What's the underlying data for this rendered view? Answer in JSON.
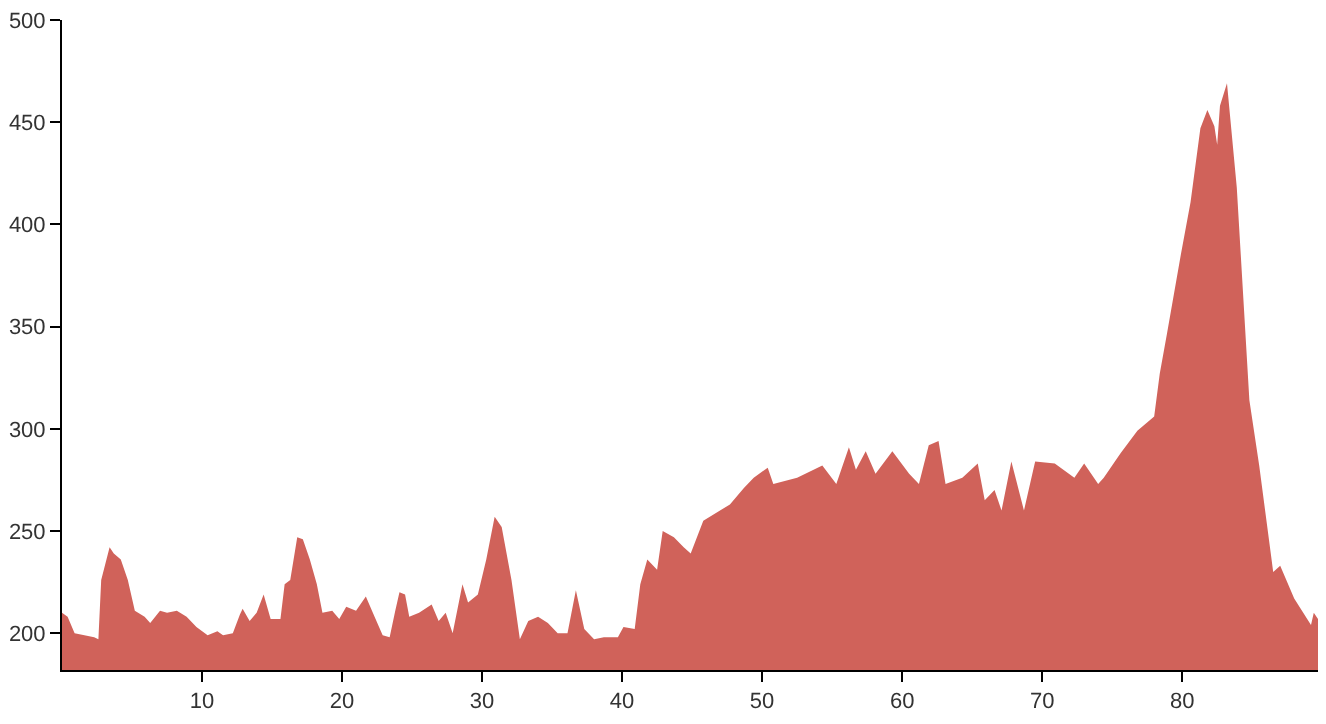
{
  "chart_data": {
    "type": "area",
    "color": "#d0625a",
    "xlim": [
      0,
      89.7
    ],
    "ylim": [
      182,
      500
    ],
    "xticks": [
      10,
      20,
      30,
      40,
      50,
      60,
      70,
      80
    ],
    "yticks": [
      200,
      250,
      300,
      350,
      400,
      450,
      500
    ],
    "legend": false,
    "x": [
      0,
      0.4,
      0.9,
      2.3,
      2.6,
      2.8,
      3.4,
      3.7,
      4.2,
      4.7,
      5.2,
      5.9,
      6.3,
      7.0,
      7.5,
      8.2,
      8.9,
      9.6,
      10.4,
      11.1,
      11.5,
      12.2,
      12.7,
      12.9,
      13.4,
      13.9,
      14.4,
      14.9,
      15.6,
      15.9,
      16.3,
      16.8,
      17.2,
      17.7,
      18.2,
      18.6,
      19.3,
      19.8,
      20.3,
      21.0,
      21.7,
      22.2,
      22.9,
      23.4,
      23.8,
      24.1,
      24.5,
      24.8,
      25.5,
      26.4,
      26.9,
      27.4,
      27.9,
      28.6,
      29.0,
      29.7,
      30.3,
      30.9,
      31.4,
      32.1,
      32.7,
      33.3,
      34.0,
      34.7,
      35.4,
      36.1,
      36.7,
      37.3,
      38.0,
      38.7,
      39.7,
      40.1,
      40.9,
      41.3,
      41.8,
      42.5,
      42.9,
      43.7,
      44.4,
      44.9,
      45.8,
      47.7,
      48.7,
      49.4,
      50.4,
      50.8,
      52.5,
      54.3,
      55.3,
      56.2,
      56.7,
      57.4,
      58.1,
      59.3,
      60.5,
      61.2,
      61.9,
      62.6,
      63.1,
      64.3,
      65.4,
      65.9,
      66.6,
      67.1,
      67.8,
      68.7,
      69.5,
      70.9,
      72.3,
      73.0,
      74.0,
      74.4,
      75.6,
      76.8,
      78.0,
      78.4,
      78.9,
      79.9,
      80.6,
      81.3,
      81.8,
      82.3,
      82.5,
      82.7,
      83.2,
      83.9,
      84.8,
      85.5,
      86.5,
      87.0,
      88.0,
      89.2,
      89.4,
      89.7
    ],
    "values": [
      210,
      208,
      200,
      198,
      197,
      226,
      242,
      239,
      236,
      226,
      211,
      208,
      205,
      211,
      210,
      211,
      208,
      203,
      199,
      201,
      199,
      200,
      209,
      212,
      206,
      210,
      219,
      207,
      207,
      224,
      226,
      247,
      246,
      236,
      224,
      210,
      211,
      207,
      213,
      211,
      218,
      210,
      199,
      198,
      211,
      220,
      219,
      208,
      210,
      214,
      206,
      210,
      200,
      224,
      215,
      219,
      236,
      257,
      252,
      226,
      197,
      206,
      208,
      205,
      200,
      200,
      221,
      202,
      197,
      198,
      198,
      203,
      202,
      224,
      236,
      231,
      250,
      247,
      242,
      239,
      255,
      263,
      271,
      276,
      281,
      273,
      276,
      282,
      273,
      291,
      280,
      289,
      278,
      289,
      278,
      273,
      292,
      294,
      273,
      276,
      283,
      265,
      270,
      260,
      284,
      260,
      284,
      283,
      276,
      283,
      273,
      276,
      288,
      299,
      306,
      327,
      346,
      385,
      411,
      447,
      456,
      448,
      439,
      458,
      469,
      418,
      314,
      282,
      230,
      233,
      217,
      204,
      210,
      207
    ]
  }
}
